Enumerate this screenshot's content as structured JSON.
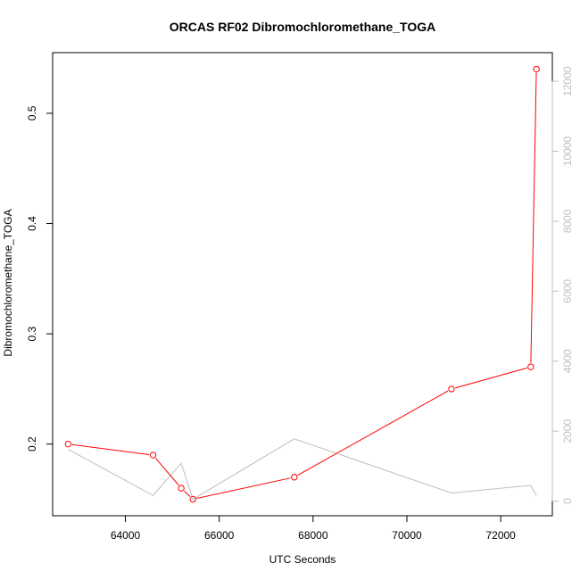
{
  "chart_data": {
    "type": "line",
    "title": "ORCAS RF02 Dibromochloromethane_TOGA",
    "xlabel": "UTC Seconds",
    "ylabel": "Dibromochloromethane_TOGA",
    "xlim": [
      62450,
      73100
    ],
    "ylim": [
      0.135,
      0.555
    ],
    "y2lim": [
      -420,
      12820
    ],
    "x_ticks": [
      64000,
      66000,
      68000,
      70000,
      72000
    ],
    "y_ticks": [
      0.2,
      0.3,
      0.4,
      0.5
    ],
    "y2_ticks": [
      0,
      2000,
      4000,
      6000,
      8000,
      10000,
      12000
    ],
    "colors": {
      "primary": "#ff0000",
      "secondary": "#bebebe",
      "axis": "#000000"
    },
    "series": [
      {
        "axis": "left",
        "marker": "open-circle",
        "x": [
          62780,
          64590,
          65190,
          65440,
          67600,
          70950,
          72640,
          72760
        ],
        "y": [
          0.2,
          0.19,
          0.16,
          0.15,
          0.17,
          0.25,
          0.27,
          0.54
        ]
      },
      {
        "axis": "right",
        "marker": "none",
        "x": [
          62780,
          64590,
          65190,
          65440,
          67600,
          70950,
          72640,
          72760
        ],
        "y": [
          1480,
          160,
          1080,
          50,
          1780,
          230,
          450,
          160
        ]
      }
    ]
  }
}
